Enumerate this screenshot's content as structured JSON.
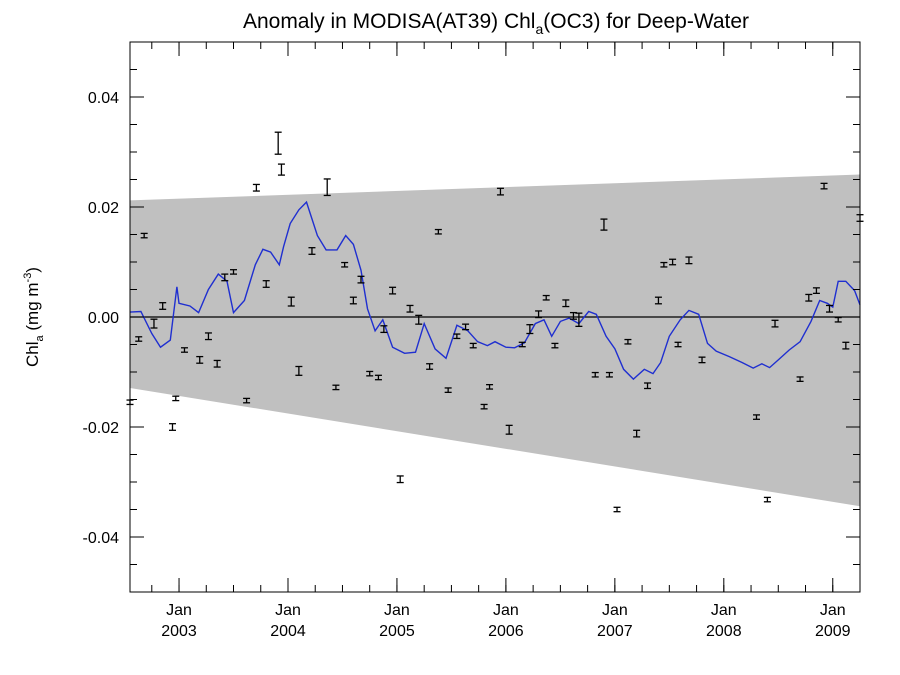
{
  "chart_data": {
    "type": "line",
    "title": {
      "prefix": "Anomaly in MODISA(AT39) Chl",
      "subscript": "a",
      "suffix": "(OC3) for Deep-Water"
    },
    "ylabel": {
      "prefix": "Chl",
      "subscript": "a",
      "unit_prefix": " (mg m",
      "superscript": "-3",
      "unit_suffix": ")"
    },
    "xlabel": "",
    "xlim": [
      2002.55,
      2009.25
    ],
    "ylim": [
      -0.05,
      0.05
    ],
    "y_ticks": [
      {
        "value": 0.04,
        "label": "0.04"
      },
      {
        "value": 0.02,
        "label": "0.02"
      },
      {
        "value": 0.0,
        "label": "0.00"
      },
      {
        "value": -0.02,
        "label": "-0.02"
      },
      {
        "value": -0.04,
        "label": "-0.04"
      }
    ],
    "x_ticks": [
      {
        "value": 2003.0,
        "month": "Jan",
        "year": "2003"
      },
      {
        "value": 2004.0,
        "month": "Jan",
        "year": "2004"
      },
      {
        "value": 2005.0,
        "month": "Jan",
        "year": "2005"
      },
      {
        "value": 2006.0,
        "month": "Jan",
        "year": "2006"
      },
      {
        "value": 2007.0,
        "month": "Jan",
        "year": "2007"
      },
      {
        "value": 2008.0,
        "month": "Jan",
        "year": "2008"
      },
      {
        "value": 2009.0,
        "month": "Jan",
        "year": "2009"
      }
    ],
    "zero_line": 0.0,
    "band": {
      "color": "#c0c0c0",
      "upper": [
        [
          2002.55,
          0.0212
        ],
        [
          2009.25,
          0.0259
        ]
      ],
      "lower": [
        [
          2002.55,
          -0.0129
        ],
        [
          2009.25,
          -0.0344
        ]
      ]
    },
    "series": [
      {
        "color": "#1f2fd0",
        "points": [
          [
            2002.55,
            0.0009
          ],
          [
            2002.65,
            0.001
          ],
          [
            2002.75,
            -0.003
          ],
          [
            2002.83,
            -0.0055
          ],
          [
            2002.92,
            -0.0042
          ],
          [
            2002.98,
            0.0055
          ],
          [
            2003.0,
            0.0025
          ],
          [
            2003.1,
            0.002
          ],
          [
            2003.18,
            0.0008
          ],
          [
            2003.27,
            0.005
          ],
          [
            2003.36,
            0.0078
          ],
          [
            2003.44,
            0.0065
          ],
          [
            2003.5,
            0.0008
          ],
          [
            2003.6,
            0.003
          ],
          [
            2003.7,
            0.0095
          ],
          [
            2003.77,
            0.0123
          ],
          [
            2003.84,
            0.0118
          ],
          [
            2003.92,
            0.0095
          ],
          [
            2003.96,
            0.0128
          ],
          [
            2004.02,
            0.017
          ],
          [
            2004.1,
            0.0195
          ],
          [
            2004.17,
            0.0209
          ],
          [
            2004.27,
            0.0148
          ],
          [
            2004.35,
            0.0122
          ],
          [
            2004.45,
            0.0122
          ],
          [
            2004.53,
            0.0148
          ],
          [
            2004.6,
            0.0132
          ],
          [
            2004.67,
            0.0085
          ],
          [
            2004.73,
            0.0015
          ],
          [
            2004.8,
            -0.0025
          ],
          [
            2004.87,
            -0.0005
          ],
          [
            2004.96,
            -0.0055
          ],
          [
            2005.07,
            -0.0066
          ],
          [
            2005.17,
            -0.0064
          ],
          [
            2005.25,
            -0.0012
          ],
          [
            2005.35,
            -0.0058
          ],
          [
            2005.45,
            -0.0075
          ],
          [
            2005.55,
            -0.0015
          ],
          [
            2005.65,
            -0.0025
          ],
          [
            2005.74,
            -0.0045
          ],
          [
            2005.83,
            -0.0052
          ],
          [
            2005.9,
            -0.0045
          ],
          [
            2006.0,
            -0.0055
          ],
          [
            2006.08,
            -0.0056
          ],
          [
            2006.17,
            -0.0047
          ],
          [
            2006.27,
            -0.0012
          ],
          [
            2006.35,
            -0.0005
          ],
          [
            2006.42,
            -0.0035
          ],
          [
            2006.5,
            -0.0008
          ],
          [
            2006.58,
            -0.0002
          ],
          [
            2006.67,
            -0.0012
          ],
          [
            2006.76,
            0.001
          ],
          [
            2006.83,
            0.0005
          ],
          [
            2006.92,
            -0.0035
          ],
          [
            2007.0,
            -0.0058
          ],
          [
            2007.08,
            -0.0095
          ],
          [
            2007.17,
            -0.0113
          ],
          [
            2007.27,
            -0.0095
          ],
          [
            2007.35,
            -0.0103
          ],
          [
            2007.42,
            -0.0083
          ],
          [
            2007.5,
            -0.0035
          ],
          [
            2007.6,
            -0.0005
          ],
          [
            2007.68,
            0.0012
          ],
          [
            2007.77,
            0.0005
          ],
          [
            2007.85,
            -0.0048
          ],
          [
            2007.93,
            -0.0062
          ],
          [
            2008.05,
            -0.0072
          ],
          [
            2008.17,
            -0.0083
          ],
          [
            2008.27,
            -0.0093
          ],
          [
            2008.35,
            -0.0085
          ],
          [
            2008.42,
            -0.0092
          ],
          [
            2008.5,
            -0.0078
          ],
          [
            2008.6,
            -0.006
          ],
          [
            2008.7,
            -0.0045
          ],
          [
            2008.8,
            -0.0008
          ],
          [
            2008.88,
            0.003
          ],
          [
            2008.95,
            0.0025
          ],
          [
            2009.0,
            0.0018
          ],
          [
            2009.05,
            0.0065
          ],
          [
            2009.12,
            0.0065
          ],
          [
            2009.2,
            0.0048
          ],
          [
            2009.25,
            0.0022
          ]
        ]
      }
    ],
    "error_bars": {
      "color": "#000000",
      "points": [
        [
          2002.55,
          -0.0155,
          0.0004
        ],
        [
          2002.63,
          -0.004,
          0.0004
        ],
        [
          2002.68,
          0.0148,
          0.0004
        ],
        [
          2002.77,
          -0.0012,
          0.0008
        ],
        [
          2002.85,
          0.002,
          0.0006
        ],
        [
          2002.94,
          -0.02,
          0.0006
        ],
        [
          2002.97,
          -0.0148,
          0.0004
        ],
        [
          2003.05,
          -0.006,
          0.0004
        ],
        [
          2003.19,
          -0.0078,
          0.0006
        ],
        [
          2003.27,
          -0.0035,
          0.0006
        ],
        [
          2003.35,
          -0.0085,
          0.0006
        ],
        [
          2003.42,
          0.0072,
          0.0006
        ],
        [
          2003.5,
          0.0082,
          0.0004
        ],
        [
          2003.62,
          -0.0152,
          0.0004
        ],
        [
          2003.71,
          0.0235,
          0.0006
        ],
        [
          2003.8,
          0.006,
          0.0006
        ],
        [
          2003.91,
          0.0316,
          0.002
        ],
        [
          2003.94,
          0.0268,
          0.001
        ],
        [
          2004.03,
          0.0028,
          0.0008
        ],
        [
          2004.1,
          -0.0098,
          0.0008
        ],
        [
          2004.22,
          0.012,
          0.0006
        ],
        [
          2004.36,
          0.0236,
          0.0015
        ],
        [
          2004.44,
          -0.0128,
          0.0004
        ],
        [
          2004.52,
          0.0095,
          0.0004
        ],
        [
          2004.6,
          0.003,
          0.0006
        ],
        [
          2004.67,
          0.0068,
          0.0006
        ],
        [
          2004.75,
          -0.0103,
          0.0004
        ],
        [
          2004.83,
          -0.011,
          0.0004
        ],
        [
          2004.88,
          -0.0022,
          0.0006
        ],
        [
          2004.96,
          0.0048,
          0.0006
        ],
        [
          2005.03,
          -0.0295,
          0.0006
        ],
        [
          2005.12,
          0.0015,
          0.0006
        ],
        [
          2005.2,
          -0.0005,
          0.0008
        ],
        [
          2005.3,
          -0.009,
          0.0005
        ],
        [
          2005.38,
          0.0155,
          0.0004
        ],
        [
          2005.47,
          -0.0133,
          0.0004
        ],
        [
          2005.55,
          -0.0035,
          0.0004
        ],
        [
          2005.63,
          -0.0018,
          0.0005
        ],
        [
          2005.7,
          -0.0052,
          0.0004
        ],
        [
          2005.8,
          -0.0163,
          0.0004
        ],
        [
          2005.85,
          -0.0127,
          0.0004
        ],
        [
          2005.95,
          0.0228,
          0.0006
        ],
        [
          2006.03,
          -0.0205,
          0.0008
        ],
        [
          2006.15,
          -0.005,
          0.0004
        ],
        [
          2006.22,
          -0.0022,
          0.0008
        ],
        [
          2006.3,
          0.0005,
          0.0006
        ],
        [
          2006.37,
          0.0035,
          0.0004
        ],
        [
          2006.45,
          -0.0052,
          0.0004
        ],
        [
          2006.55,
          0.0025,
          0.0006
        ],
        [
          2006.62,
          0.0002,
          0.0006
        ],
        [
          2006.67,
          -0.0005,
          0.0012
        ],
        [
          2006.82,
          -0.0105,
          0.0004
        ],
        [
          2006.9,
          0.0168,
          0.001
        ],
        [
          2006.95,
          -0.0105,
          0.0004
        ],
        [
          2007.02,
          -0.035,
          0.0004
        ],
        [
          2007.12,
          -0.0045,
          0.0004
        ],
        [
          2007.2,
          -0.0212,
          0.0006
        ],
        [
          2007.3,
          -0.0125,
          0.0005
        ],
        [
          2007.4,
          0.003,
          0.0006
        ],
        [
          2007.45,
          0.0095,
          0.0004
        ],
        [
          2007.53,
          0.01,
          0.0005
        ],
        [
          2007.58,
          -0.005,
          0.0004
        ],
        [
          2007.68,
          0.0103,
          0.0006
        ],
        [
          2007.8,
          -0.0078,
          0.0005
        ],
        [
          2008.3,
          -0.0182,
          0.0004
        ],
        [
          2008.4,
          -0.0332,
          0.0004
        ],
        [
          2008.47,
          -0.0012,
          0.0006
        ],
        [
          2008.7,
          -0.0113,
          0.0004
        ],
        [
          2008.78,
          0.0035,
          0.0006
        ],
        [
          2008.85,
          0.0048,
          0.0005
        ],
        [
          2008.92,
          0.0238,
          0.0005
        ],
        [
          2008.97,
          0.0015,
          0.0006
        ],
        [
          2009.05,
          -0.0005,
          0.0004
        ],
        [
          2009.12,
          -0.0052,
          0.0006
        ],
        [
          2009.25,
          0.018,
          0.0006
        ]
      ]
    },
    "legend": "none",
    "grid": false
  }
}
